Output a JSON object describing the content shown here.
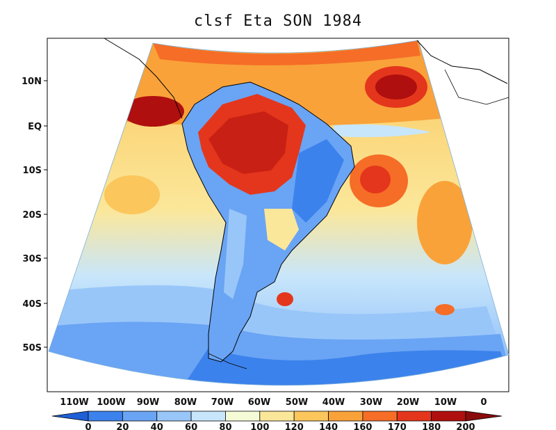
{
  "title": "clsf Eta SON 1984",
  "latitude_labels": [
    "10N",
    "EQ",
    "10S",
    "20S",
    "30S",
    "40S",
    "50S"
  ],
  "longitude_labels": [
    "110W",
    "100W",
    "90W",
    "80W",
    "70W",
    "60W",
    "50W",
    "40W",
    "30W",
    "20W",
    "10W",
    "0"
  ],
  "colorbar": {
    "ticks": [
      "0",
      "20",
      "40",
      "60",
      "80",
      "100",
      "120",
      "140",
      "160",
      "170",
      "180",
      "200"
    ],
    "colors": [
      "#1f5fd6",
      "#3c82ec",
      "#6aa4f4",
      "#99c6f9",
      "#c8e6fb",
      "#f4fbd6",
      "#fbe79a",
      "#fbc65c",
      "#f9a23a",
      "#f56d27",
      "#e4361c",
      "#b00f0f",
      "#8a0b0b"
    ]
  },
  "field_colors": {
    "deep_red": "#b00f0f",
    "red": "#e4361c",
    "orange": "#f56d27",
    "light_orange": "#f9a23a",
    "yellow": "#fbc65c",
    "pale_yellow": "#fbe79a",
    "white": "#f4fbd6",
    "pale_blue": "#c8e6fb",
    "light_blue": "#99c6f9",
    "mid_blue": "#6aa4f4",
    "blue": "#3c82ec"
  }
}
